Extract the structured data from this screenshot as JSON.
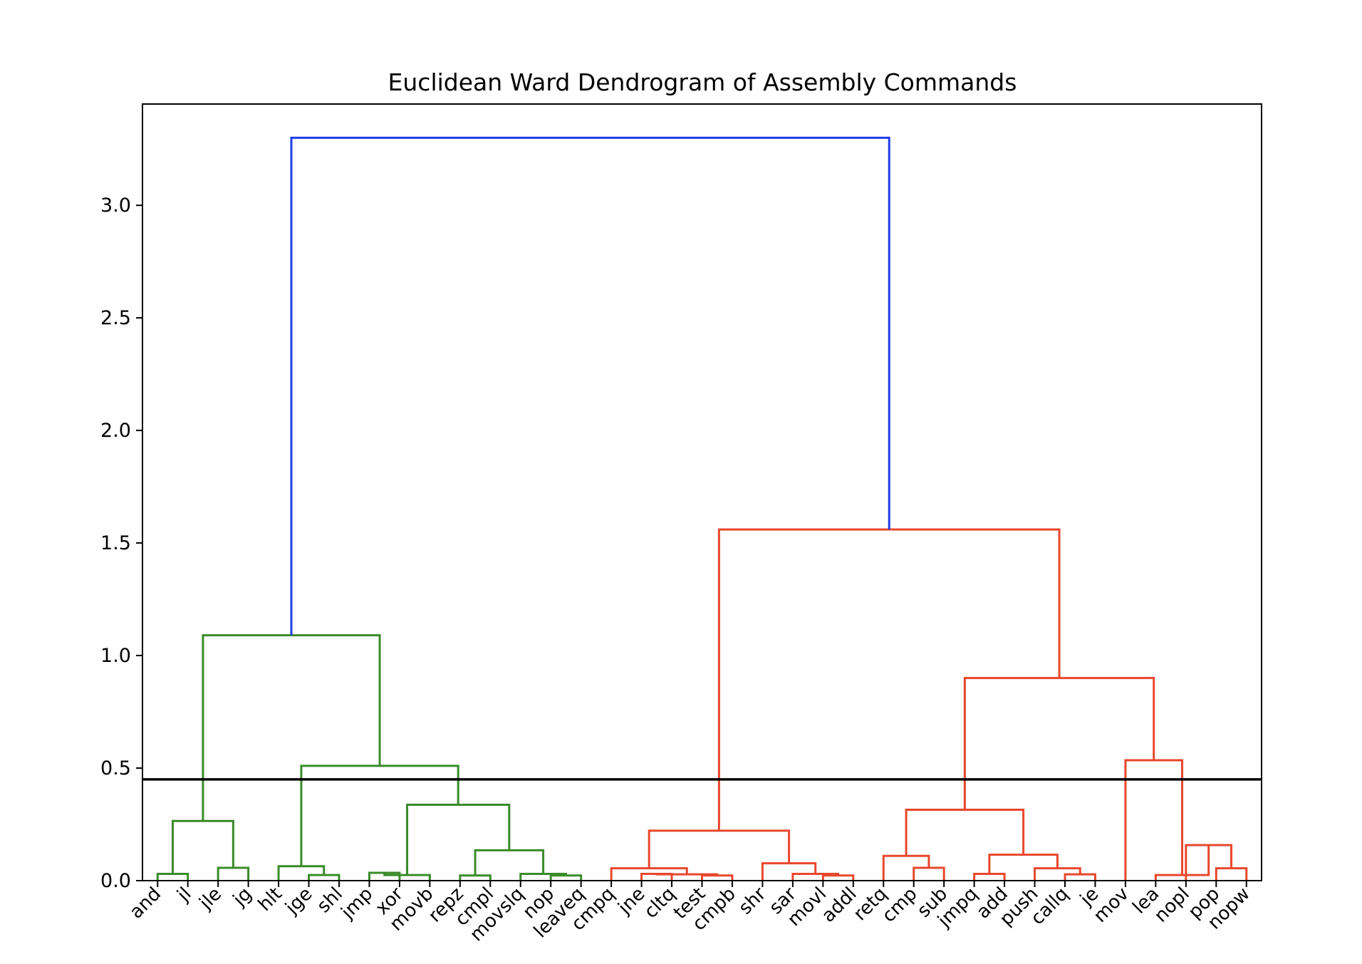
{
  "chart_data": {
    "type": "dendrogram",
    "title": "Euclidean Ward Dendrogram of Assembly Commands",
    "xlabel": "",
    "ylabel": "",
    "ylim": [
      0,
      3.45
    ],
    "yticks": [
      "0.0",
      "0.5",
      "1.0",
      "1.5",
      "2.0",
      "2.5",
      "3.0"
    ],
    "ytick_values": [
      0,
      0.5,
      1.0,
      1.5,
      2.0,
      2.5,
      3.0
    ],
    "leaves": [
      "and",
      "jl",
      "jle",
      "jg",
      "hlt",
      "jge",
      "shl",
      "jmp",
      "xor",
      "movb",
      "repz",
      "cmpl",
      "movslq",
      "nop",
      "leaveq",
      "cmpq",
      "jne",
      "cltq",
      "test",
      "cmpb",
      "shr",
      "sar",
      "movl",
      "addl",
      "retq",
      "cmp",
      "sub",
      "jmpq",
      "add",
      "push",
      "callq",
      "je",
      "mov",
      "lea",
      "nopl",
      "pop",
      "nopw"
    ],
    "cut_height": 0.45,
    "colors": {
      "cluster_green": "#3a8b2a",
      "cluster_red": "#e8472d",
      "root_blue": "#1f3ee6",
      "cut_line": "#000000"
    },
    "merges": [
      {
        "left": 0,
        "right": 1,
        "height": 0.03,
        "color": "cluster_green"
      },
      {
        "left": 2,
        "right": 3,
        "height": 0.057,
        "color": "cluster_green"
      },
      {
        "left": 37,
        "right": 38,
        "height": 0.265,
        "color": "cluster_green"
      },
      {
        "left": 5,
        "right": 6,
        "height": 0.025,
        "color": "cluster_green"
      },
      {
        "left": 4,
        "right": 40,
        "height": 0.064,
        "color": "cluster_green"
      },
      {
        "left": 7,
        "right": 8,
        "height": 0.035,
        "color": "cluster_green"
      },
      {
        "left": 42,
        "right": 9,
        "height": 0.025,
        "color": "cluster_green"
      },
      {
        "left": 10,
        "right": 11,
        "height": 0.023,
        "color": "cluster_green"
      },
      {
        "left": 13,
        "right": 14,
        "height": 0.023,
        "color": "cluster_green"
      },
      {
        "left": 12,
        "right": 45,
        "height": 0.03,
        "color": "cluster_green"
      },
      {
        "left": 44,
        "right": 46,
        "height": 0.135,
        "color": "cluster_green"
      },
      {
        "left": 43,
        "right": 47,
        "height": 0.337,
        "color": "cluster_green"
      },
      {
        "left": 41,
        "right": 48,
        "height": 0.51,
        "color": "cluster_green"
      },
      {
        "left": 39,
        "right": 49,
        "height": 1.09,
        "color": "cluster_green"
      },
      {
        "left": 16,
        "right": 17,
        "height": 0.03,
        "color": "cluster_red"
      },
      {
        "left": 18,
        "right": 19,
        "height": 0.023,
        "color": "cluster_red"
      },
      {
        "left": 51,
        "right": 52,
        "height": 0.028,
        "color": "cluster_red"
      },
      {
        "left": 15,
        "right": 53,
        "height": 0.055,
        "color": "cluster_red"
      },
      {
        "left": 22,
        "right": 23,
        "height": 0.023,
        "color": "cluster_red"
      },
      {
        "left": 21,
        "right": 55,
        "height": 0.03,
        "color": "cluster_red"
      },
      {
        "left": 20,
        "right": 56,
        "height": 0.077,
        "color": "cluster_red"
      },
      {
        "left": 54,
        "right": 57,
        "height": 0.222,
        "color": "cluster_red"
      },
      {
        "left": 25,
        "right": 26,
        "height": 0.057,
        "color": "cluster_red"
      },
      {
        "left": 24,
        "right": 59,
        "height": 0.11,
        "color": "cluster_red"
      },
      {
        "left": 27,
        "right": 28,
        "height": 0.03,
        "color": "cluster_red"
      },
      {
        "left": 30,
        "right": 31,
        "height": 0.028,
        "color": "cluster_red"
      },
      {
        "left": 29,
        "right": 62,
        "height": 0.055,
        "color": "cluster_red"
      },
      {
        "left": 61,
        "right": 63,
        "height": 0.115,
        "color": "cluster_red"
      },
      {
        "left": 60,
        "right": 64,
        "height": 0.315,
        "color": "cluster_red"
      },
      {
        "left": 35,
        "right": 36,
        "height": 0.055,
        "color": "cluster_red"
      },
      {
        "left": 34,
        "right": 66,
        "height": 0.158,
        "color": "cluster_red"
      },
      {
        "left": 33,
        "right": 67,
        "height": 0.025,
        "color": "cluster_red"
      },
      {
        "left": 32,
        "right": 68,
        "height": 0.535,
        "color": "cluster_red"
      },
      {
        "left": 65,
        "right": 69,
        "height": 0.9,
        "color": "cluster_red"
      },
      {
        "left": 58,
        "right": 70,
        "height": 1.56,
        "color": "cluster_red"
      },
      {
        "left": 50,
        "right": 71,
        "height": 3.3,
        "color": "root_blue"
      }
    ]
  }
}
